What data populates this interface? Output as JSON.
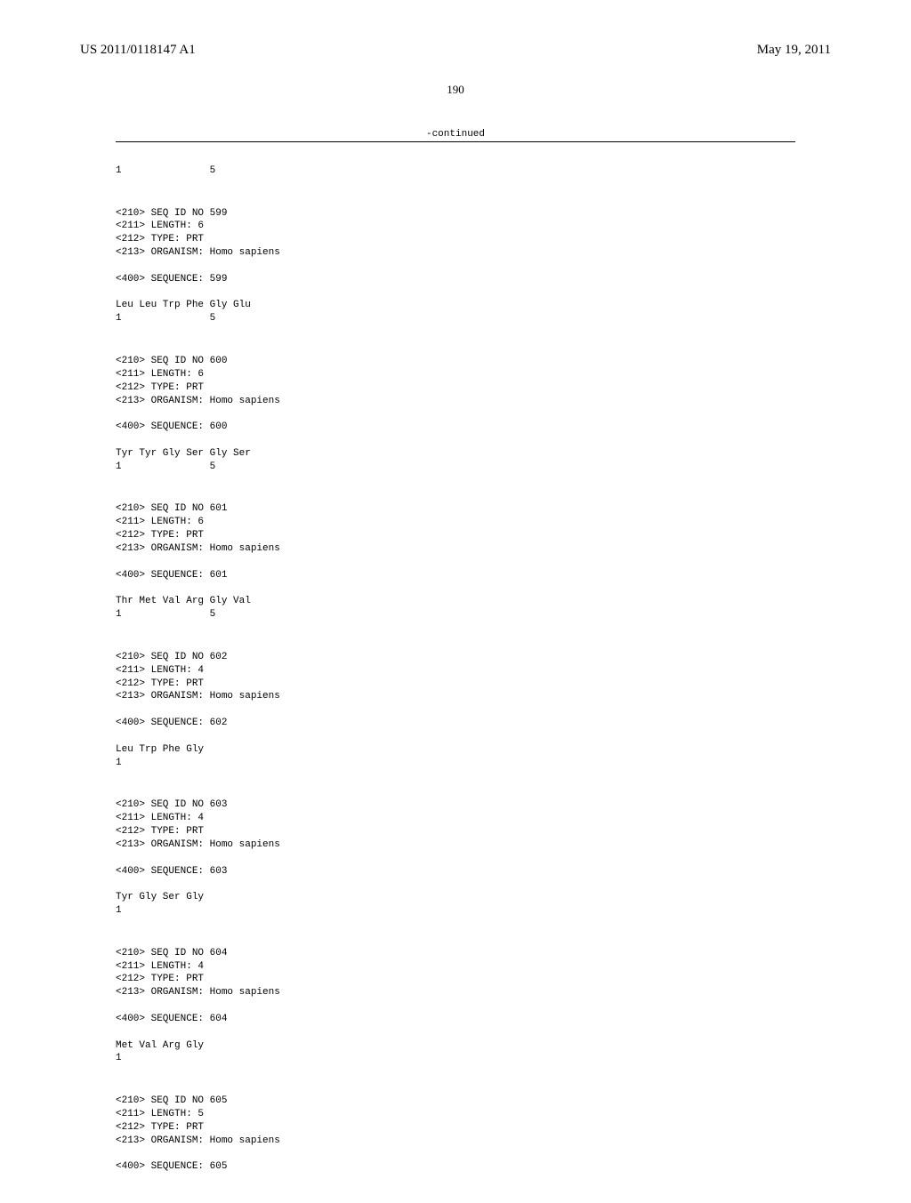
{
  "header": {
    "publication_number": "US 2011/0118147 A1",
    "publication_date": "May 19, 2011"
  },
  "page_number": "190",
  "continued_label": "-continued",
  "sequences": [
    {
      "position_line": "1               5"
    },
    {
      "lines": [
        "<210> SEQ ID NO 599",
        "<211> LENGTH: 6",
        "<212> TYPE: PRT",
        "<213> ORGANISM: Homo sapiens"
      ],
      "sequence_label": "<400> SEQUENCE: 599",
      "sequence": "Leu Leu Trp Phe Gly Glu",
      "position_line": "1               5"
    },
    {
      "lines": [
        "<210> SEQ ID NO 600",
        "<211> LENGTH: 6",
        "<212> TYPE: PRT",
        "<213> ORGANISM: Homo sapiens"
      ],
      "sequence_label": "<400> SEQUENCE: 600",
      "sequence": "Tyr Tyr Gly Ser Gly Ser",
      "position_line": "1               5"
    },
    {
      "lines": [
        "<210> SEQ ID NO 601",
        "<211> LENGTH: 6",
        "<212> TYPE: PRT",
        "<213> ORGANISM: Homo sapiens"
      ],
      "sequence_label": "<400> SEQUENCE: 601",
      "sequence": "Thr Met Val Arg Gly Val",
      "position_line": "1               5"
    },
    {
      "lines": [
        "<210> SEQ ID NO 602",
        "<211> LENGTH: 4",
        "<212> TYPE: PRT",
        "<213> ORGANISM: Homo sapiens"
      ],
      "sequence_label": "<400> SEQUENCE: 602",
      "sequence": "Leu Trp Phe Gly",
      "position_line": "1"
    },
    {
      "lines": [
        "<210> SEQ ID NO 603",
        "<211> LENGTH: 4",
        "<212> TYPE: PRT",
        "<213> ORGANISM: Homo sapiens"
      ],
      "sequence_label": "<400> SEQUENCE: 603",
      "sequence": "Tyr Gly Ser Gly",
      "position_line": "1"
    },
    {
      "lines": [
        "<210> SEQ ID NO 604",
        "<211> LENGTH: 4",
        "<212> TYPE: PRT",
        "<213> ORGANISM: Homo sapiens"
      ],
      "sequence_label": "<400> SEQUENCE: 604",
      "sequence": "Met Val Arg Gly",
      "position_line": "1"
    },
    {
      "lines": [
        "<210> SEQ ID NO 605",
        "<211> LENGTH: 5",
        "<212> TYPE: PRT",
        "<213> ORGANISM: Homo sapiens"
      ],
      "sequence_label": "<400> SEQUENCE: 605"
    }
  ]
}
